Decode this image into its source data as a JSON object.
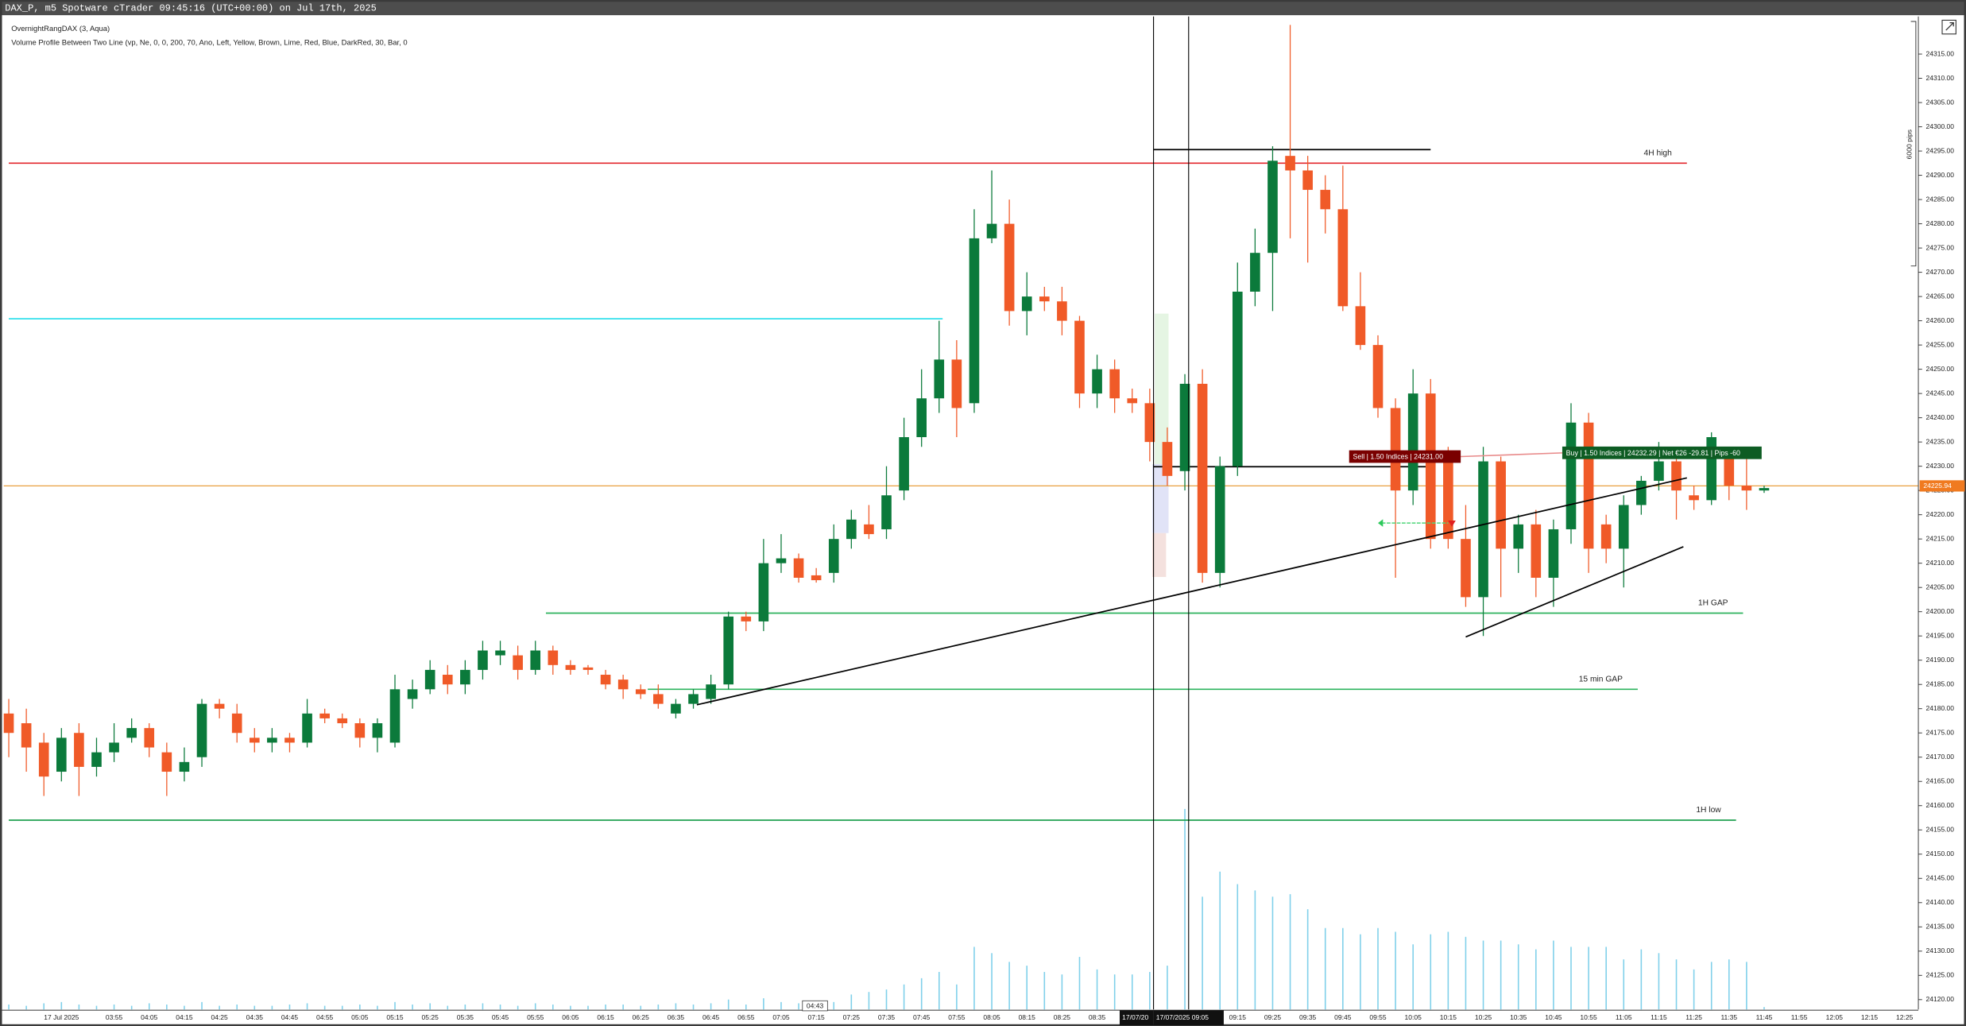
{
  "chart_data": {
    "type": "candlestick",
    "title": "DAX_P, m5 Spotware cTrader 09:45:16 (UTC+00:00) on Jul 17th, 2025",
    "indicators": [
      "OvernightRangDAX (3, Aqua)",
      "Volume Profile Between Two Line (vp, Ne, 0, 0, 200, 70, Ano, Left, Yellow, Brown, Lime, Red, Blue, DarkRed, 30, Bar, 0"
    ],
    "categories": [
      null,
      null,
      null,
      "17 Jul 2025",
      null,
      null,
      "03:55",
      null,
      "04:05",
      null,
      "04:15",
      null,
      "04:25",
      null,
      "04:35",
      null,
      "04:45",
      null,
      "04:55",
      null,
      "05:05",
      null,
      "05:15",
      null,
      "05:25",
      null,
      "05:35",
      null,
      "05:45",
      null,
      "05:55",
      null,
      "06:05",
      null,
      "06:15",
      null,
      "06:25",
      null,
      "06:35",
      null,
      "06:45",
      null,
      "06:55",
      null,
      "07:05",
      null,
      "07:15",
      null,
      "07:25",
      null,
      "07:35",
      null,
      "07:45",
      null,
      "07:55",
      null,
      "08:05",
      null,
      "08:15",
      null,
      "08:25",
      null,
      "08:35",
      null,
      null,
      null,
      null,
      null,
      null,
      null,
      "09:15",
      null,
      "09:25",
      null,
      "09:35",
      null,
      "09:45",
      null,
      "09:55",
      null,
      "10:05",
      null,
      "10:15",
      null,
      "10:25",
      null,
      "10:35",
      null,
      "10:45",
      null,
      "10:55",
      null,
      "11:05",
      null,
      "11:15",
      null,
      "11:25",
      null,
      "11:35",
      null,
      "11:45",
      null,
      "11:55",
      null,
      "12:05",
      null,
      "12:15",
      null,
      "12:25"
    ],
    "open": [
      24179,
      24177,
      24173,
      24167,
      24175,
      24168,
      24171,
      24174,
      24176,
      24171,
      24167,
      24170,
      24181,
      24179,
      24174,
      24173,
      24174,
      24173,
      24179,
      24178,
      24177,
      24174,
      24173,
      24182,
      24184,
      24187,
      24185,
      24188,
      24191,
      24191,
      24188,
      24192,
      24189,
      24188.5,
      24187,
      24186,
      24184,
      24183,
      24179,
      24181,
      24182,
      24185,
      24199,
      24198,
      24210,
      24211,
      24207.5,
      24208,
      24215,
      24218,
      24217,
      24225,
      24236,
      24244,
      24252,
      24243,
      24277,
      24280,
      24262,
      24265,
      24264,
      24260,
      24245,
      24250,
      24244,
      24243,
      24235,
      24229,
      24247,
      24208,
      24230,
      24266,
      24274,
      24294,
      24291,
      24287,
      24283,
      24263,
      24255,
      24242,
      24225,
      24245,
      24231,
      24215,
      24203,
      24231,
      24213,
      24218,
      24207,
      24217,
      24239,
      24218,
      24213,
      24222,
      24227,
      24231,
      24224,
      24223,
      24232,
      24226,
      24225,
      null,
      null,
      null,
      null,
      null,
      null,
      null,
      null
    ],
    "high": [
      24182,
      24180,
      24175,
      24176,
      24177,
      24174,
      24177,
      24178,
      24177,
      24173,
      24172,
      24182,
      24182,
      24181,
      24176,
      24176,
      24175,
      24182,
      24180,
      24179,
      24178,
      24178,
      24187,
      24186,
      24190,
      24189,
      24190,
      24194,
      24194,
      24193,
      24194,
      24193,
      24190,
      24189,
      24188,
      24187,
      24185,
      24185,
      24182,
      24184,
      24187,
      24200,
      24200,
      24215,
      24216,
      24212,
      24209,
      24218,
      24221,
      24222,
      24230,
      24240,
      24250,
      24260,
      24256,
      24283,
      24291,
      24285,
      24270,
      24267,
      24267,
      24261,
      24253,
      24252,
      24246,
      24246,
      24238,
      24249,
      24250,
      24232,
      24272,
      24279,
      24296,
      24321,
      24294,
      24290,
      24292,
      24270,
      24257,
      24244,
      24250,
      24248,
      24234,
      24222,
      24234,
      24232,
      24220,
      24221,
      24219,
      24243,
      24241,
      24220,
      24224,
      24228,
      24235,
      24233,
      24226,
      24237,
      24234,
      24233,
      24226,
      null,
      null,
      null,
      null,
      null,
      null,
      null,
      null
    ],
    "low": [
      24170,
      24167,
      24162,
      24165,
      24162,
      24166,
      24169,
      24173,
      24170,
      24162,
      24165,
      24168,
      24178,
      24173,
      24171,
      24171,
      24171,
      24172,
      24177,
      24176,
      24172,
      24171,
      24172,
      24180,
      24183,
      24183,
      24183,
      24186,
      24189,
      24186,
      24187,
      24187,
      24187,
      24187,
      24184,
      24182,
      24182,
      24180,
      24178,
      24180,
      24181,
      24184,
      24196,
      24196,
      24208,
      24206,
      24206,
      24206,
      24213,
      24215,
      24215,
      24223,
      24234,
      24241,
      24236,
      24241,
      24276,
      24259,
      24257,
      24262,
      24257,
      24242,
      24242,
      24241,
      24241,
      24231,
      24226,
      24225,
      24206,
      24205,
      24228,
      24263,
      24262,
      24277,
      24272,
      24278,
      24262,
      24254,
      24240,
      24207,
      24222,
      24213,
      24213,
      24201,
      24195,
      24203,
      24208,
      24203,
      24201,
      24214,
      24208,
      24210,
      24205,
      24220,
      24225,
      24219,
      24221,
      24222,
      24223,
      24221,
      24224.5,
      null,
      null,
      null,
      null,
      null,
      null,
      null,
      null
    ],
    "close": [
      24175,
      24172,
      24166,
      24174,
      24168,
      24171,
      24173,
      24176,
      24172,
      24167,
      24169,
      24181,
      24180,
      24175,
      24173,
      24174,
      24173,
      24179,
      24178,
      24177,
      24174,
      24177,
      24184,
      24184,
      24188,
      24185,
      24188,
      24192,
      24192,
      24188,
      24192,
      24189,
      24188,
      24188,
      24185,
      24184,
      24183,
      24181,
      24181,
      24183,
      24185,
      24199,
      24198,
      24210,
      24211,
      24207,
      24206.5,
      24215,
      24219,
      24216,
      24224,
      24236,
      24244,
      24252,
      24242,
      24277,
      24280,
      24262,
      24265,
      24264,
      24260,
      24245,
      24250,
      24244,
      24243,
      24235,
      24228,
      24247,
      24208,
      24230,
      24266,
      24274,
      24293,
      24291,
      24287,
      24283,
      24263,
      24255,
      24242,
      24225,
      24245,
      24215,
      24215,
      24203,
      24231,
      24213,
      24218,
      24207,
      24217,
      24239,
      24213,
      24213,
      24222,
      24227,
      24231,
      24225,
      24223,
      24236,
      24226,
      24225,
      24225.5,
      null,
      null,
      null,
      null,
      null,
      null,
      null,
      null
    ],
    "volume": [
      4,
      3,
      5,
      6,
      4,
      3,
      4,
      3,
      5,
      4,
      3,
      6,
      3,
      4,
      3,
      3,
      4,
      5,
      3,
      3,
      4,
      3,
      6,
      4,
      5,
      3,
      4,
      5,
      4,
      3,
      5,
      4,
      3,
      3,
      4,
      4,
      3,
      4,
      5,
      4,
      5,
      8,
      4,
      9,
      6,
      5,
      4,
      6,
      12,
      14,
      16,
      20,
      25,
      30,
      20,
      50,
      45,
      38,
      35,
      30,
      28,
      42,
      32,
      28,
      28,
      30,
      35,
      160,
      90,
      110,
      100,
      95,
      90,
      92,
      80,
      65,
      65,
      60,
      65,
      62,
      52,
      60,
      62,
      58,
      55,
      55,
      52,
      48,
      55,
      50,
      50,
      50,
      40,
      48,
      45,
      40,
      32,
      38,
      40,
      38,
      2,
      null,
      null,
      null,
      null,
      null,
      null,
      null,
      null
    ],
    "up_color": "#0b7a3b",
    "down_color": "#f05a28",
    "volume_color": "#7fd0ea",
    "ylim": [
      24117.95,
      24322.76
    ],
    "yticks": [
      {
        "value": 24120,
        "label": "24120.00"
      },
      {
        "value": 24125,
        "label": "24125.00"
      },
      {
        "value": 24130,
        "label": "24130.00"
      },
      {
        "value": 24135,
        "label": "24135.00"
      },
      {
        "value": 24140,
        "label": "24140.00"
      },
      {
        "value": 24145,
        "label": "24145.00"
      },
      {
        "value": 24150,
        "label": "24150.00"
      },
      {
        "value": 24155,
        "label": "24155.00"
      },
      {
        "value": 24160,
        "label": "24160.00"
      },
      {
        "value": 24165,
        "label": "24165.00"
      },
      {
        "value": 24170,
        "label": "24170.00"
      },
      {
        "value": 24175,
        "label": "24175.00"
      },
      {
        "value": 24180,
        "label": "24180.00"
      },
      {
        "value": 24185,
        "label": "24185.00"
      },
      {
        "value": 24190,
        "label": "24190.00"
      },
      {
        "value": 24195,
        "label": "24195.00"
      },
      {
        "value": 24200,
        "label": "24200.00"
      },
      {
        "value": 24205,
        "label": "24205.00"
      },
      {
        "value": 24210,
        "label": "24210.00"
      },
      {
        "value": 24215,
        "label": "24215.00"
      },
      {
        "value": 24220,
        "label": "24220.00"
      },
      {
        "value": 24225,
        "label": "24225.00"
      },
      {
        "value": 24230,
        "label": "24230.00"
      },
      {
        "value": 24235,
        "label": "24235.00"
      },
      {
        "value": 24240,
        "label": "24240.00"
      },
      {
        "value": 24245,
        "label": "24245.00"
      },
      {
        "value": 24250,
        "label": "24250.00"
      },
      {
        "value": 24255,
        "label": "24255.00"
      },
      {
        "value": 24260,
        "label": "24260.00"
      },
      {
        "value": 24265,
        "label": "24265.00"
      },
      {
        "value": 24270,
        "label": "24270.00"
      },
      {
        "value": 24275,
        "label": "24275.00"
      },
      {
        "value": 24280,
        "label": "24280.00"
      },
      {
        "value": 24285,
        "label": "24285.00"
      },
      {
        "value": 24290,
        "label": "24290.00"
      },
      {
        "value": 24295,
        "label": "24295.00"
      },
      {
        "value": 24300,
        "label": "24300.00"
      },
      {
        "value": 24305,
        "label": "24305.00"
      },
      {
        "value": 24310,
        "label": "24310.00"
      },
      {
        "value": 24315,
        "label": "24315.00"
      }
    ],
    "grid": false,
    "current_price": 24225.94,
    "current_price_color": "#e8a040",
    "levels": [
      {
        "value": 24292.5,
        "color": "#e3262c",
        "x": [
          "03:25",
          "11:23"
        ],
        "label": "4H high"
      },
      {
        "value": 24260.4,
        "color": "#33e0ec",
        "x": [
          "03:25",
          "07:51"
        ]
      },
      {
        "value": 24199.7,
        "color": "#2db35e",
        "x": [
          "05:58",
          "11:39"
        ],
        "label": "1H GAP"
      },
      {
        "value": 24184,
        "color": "#2db35e",
        "x": [
          "06:27",
          "11:09"
        ],
        "label": "15 min GAP"
      },
      {
        "value": 24157,
        "color": "#1fa050",
        "x": [
          "03:25",
          "11:37"
        ],
        "label": "1H low"
      },
      {
        "value": 24295.3,
        "color": "#000000",
        "x": [
          "08:51",
          "10:10"
        ]
      },
      {
        "value": 24229.9,
        "color": "#000000",
        "x": [
          "08:51",
          "10:10"
        ]
      }
    ],
    "trendlines": [
      {
        "x": [
          "06:41",
          "11:23"
        ],
        "y": [
          24180.8,
          24227.6
        ],
        "color": "#000000"
      },
      {
        "x": [
          "10:20",
          "11:22"
        ],
        "y": [
          24194.8,
          24213.4
        ],
        "color": "#000000"
      }
    ],
    "range_label": "6000 pips",
    "crosshair_labels": [
      "17/07/20",
      "17/07/2025 09:05"
    ],
    "cursor_label": "04:43",
    "orders": [
      "Sell | 1.50 Indices | 24231.00",
      "Buy | 1.50 Indices | 24232.29 | Net €26 -29.81 | Pips -60"
    ]
  }
}
